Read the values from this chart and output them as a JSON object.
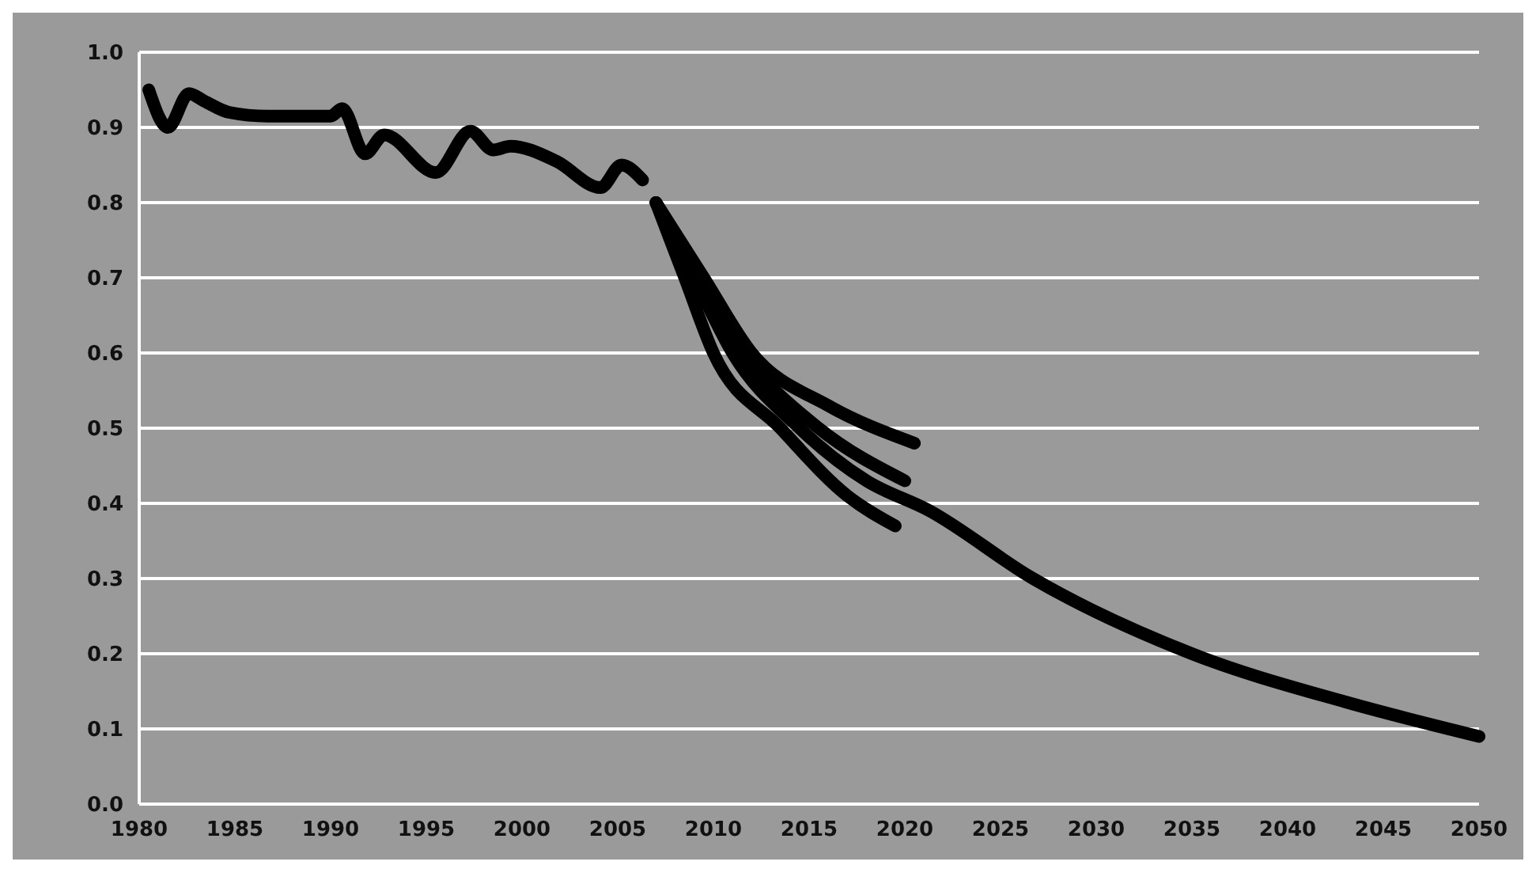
{
  "chart_data": {
    "type": "line",
    "xlim": [
      1980,
      2050
    ],
    "ylim": [
      0,
      1
    ],
    "xticks": [
      1980,
      1985,
      1990,
      1995,
      2000,
      2005,
      2010,
      2015,
      2020,
      2025,
      2030,
      2035,
      2040,
      2045,
      2050
    ],
    "yticks": [
      {
        "value": 0,
        "label": "0.0"
      },
      0.1,
      0.2,
      0.3,
      0.4,
      0.5,
      0.6,
      0.7,
      0.8,
      0.9,
      {
        "value": 1,
        "label": "1.0"
      }
    ],
    "grid": "y",
    "marker": "none",
    "line_style": "solid",
    "series": [
      {
        "color": "#000000",
        "x": [
          1980.5,
          1981.5,
          1982.6,
          1983.4,
          1984.7,
          1986.7,
          1990,
          1990.6,
          1991.8,
          1992.8,
          1995.5,
          1997.3,
          1998.5,
          1999.4,
          2001.8,
          2004.1,
          2005.2,
          2006.3
        ],
        "values": [
          0.95,
          0.9,
          0.945,
          0.935,
          0.92,
          0.915,
          0.915,
          0.925,
          0.865,
          0.89,
          0.84,
          0.895,
          0.87,
          0.875,
          0.855,
          0.82,
          0.85,
          0.83
        ]
      },
      {
        "color": "#000000",
        "x": [
          2007,
          2009.5,
          2012,
          2016,
          2020.5
        ],
        "values": [
          0.8,
          0.7,
          0.6,
          0.53,
          0.48
        ]
      },
      {
        "color": "#000000",
        "x": [
          2007,
          2009,
          2011.5,
          2015.5,
          2020
        ],
        "values": [
          0.8,
          0.7,
          0.6,
          0.5,
          0.43
        ]
      },
      {
        "color": "#000000",
        "x": [
          2007,
          2008.5,
          2010,
          2013.5,
          2017,
          2019.5
        ],
        "values": [
          0.8,
          0.7,
          0.6,
          0.5,
          0.41,
          0.37
        ]
      },
      {
        "color": "#000000",
        "x": [
          2007,
          2009,
          2011,
          2014.5,
          2018,
          2021.3,
          2026.7,
          2035,
          2043,
          2050
        ],
        "values": [
          0.8,
          0.7,
          0.6,
          0.5,
          0.43,
          0.39,
          0.3,
          0.2,
          0.136,
          0.09
        ]
      }
    ]
  }
}
